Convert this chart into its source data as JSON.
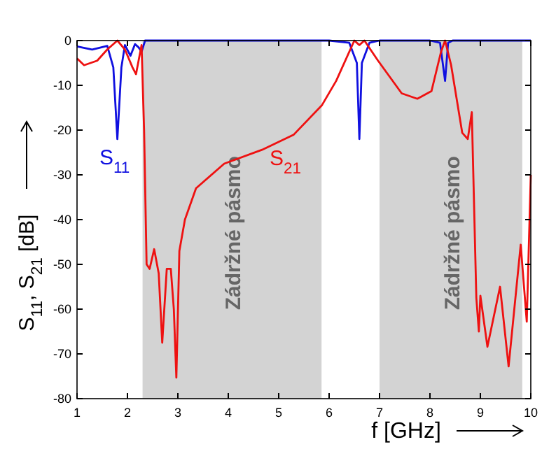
{
  "chart_data": {
    "type": "line",
    "xlabel": "f [GHz]",
    "ylabel": "S$_{11}$, S$_{21}$ [dB]",
    "xlim": [
      1,
      10
    ],
    "ylim": [
      -80,
      0
    ],
    "xticks": [
      1,
      2,
      3,
      4,
      5,
      6,
      7,
      8,
      9,
      10
    ],
    "yticks": [
      -80,
      -70,
      -60,
      -50,
      -40,
      -30,
      -20,
      -10,
      0
    ],
    "grid": false,
    "legend": false,
    "bands": [
      {
        "axis": "x",
        "from": 2.3,
        "to": 5.85,
        "label": "Zádržné pásmo",
        "color": "#d3d3d3"
      },
      {
        "axis": "x",
        "from": 7.0,
        "to": 9.83,
        "label": "Zádržné pásmo",
        "color": "#d3d3d3"
      }
    ],
    "series": [
      {
        "name": "S$_{11}$",
        "color": "#1010e0",
        "x": [
          1,
          1.3,
          1.6,
          1.72,
          1.8,
          1.88,
          1.95,
          2.06,
          2.15,
          2.22,
          2.28,
          2.35,
          3,
          4,
          5,
          6,
          6.4,
          6.55,
          6.6,
          6.65,
          6.8,
          7,
          8,
          8.2,
          8.3,
          8.36,
          8.45,
          9,
          10
        ],
        "values": [
          -1.3,
          -2,
          -1.2,
          -6,
          -22,
          -6,
          -1,
          -3.4,
          -0.8,
          -1.5,
          -2.5,
          0,
          0,
          0,
          0,
          0,
          -0.5,
          -5,
          -22,
          -5,
          -0.5,
          0,
          0,
          -0.5,
          -9,
          -0.5,
          0,
          0,
          0
        ]
      },
      {
        "name": "S$_{21}$",
        "color": "#ee1111",
        "x": [
          1,
          1.14,
          1.4,
          1.6,
          1.8,
          1.95,
          2.1,
          2.17,
          2.28,
          2.33,
          2.38,
          2.44,
          2.53,
          2.62,
          2.69,
          2.78,
          2.86,
          2.92,
          2.97,
          3.03,
          3.14,
          3.36,
          3.92,
          4.67,
          5.3,
          5.86,
          6.14,
          6.5,
          6.6,
          6.7,
          6.97,
          7.44,
          7.75,
          8.03,
          8.22,
          8.3,
          8.42,
          8.64,
          8.75,
          8.83,
          8.92,
          8.97,
          9.0,
          9.14,
          9.39,
          9.56,
          9.8,
          9.92,
          10
        ],
        "values": [
          -4,
          -5.5,
          -4.5,
          -2,
          0,
          -2,
          -6,
          -7.5,
          -1,
          -20,
          -50,
          -51,
          -46.6,
          -52,
          -67.5,
          -51,
          -51,
          -60,
          -75.3,
          -47,
          -40,
          -33,
          -27.5,
          -24.4,
          -21,
          -14.4,
          -9,
          0,
          -1,
          0,
          -4.5,
          -11.8,
          -13,
          -11.3,
          -2.5,
          0,
          -5.5,
          -20.6,
          -22,
          -16,
          -57.5,
          -65,
          -57,
          -68.4,
          -55,
          -72.8,
          -45.6,
          -62.8,
          -30
        ]
      }
    ]
  }
}
